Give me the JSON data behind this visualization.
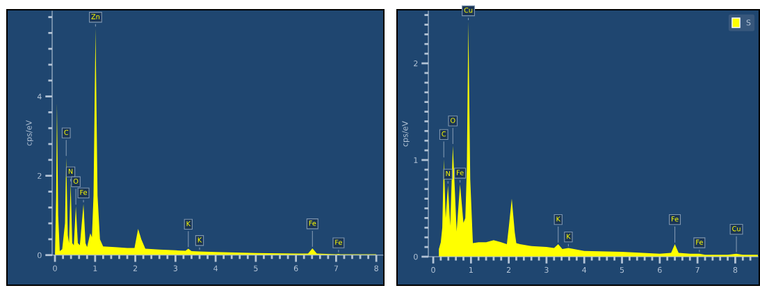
{
  "chart_data": [
    {
      "type": "area",
      "ylabel": "cps/eV",
      "xlim": [
        -0.07,
        8.17
      ],
      "ylim": [
        0,
        6.15
      ],
      "xticks": [
        0,
        1,
        2,
        3,
        4,
        5,
        6,
        7,
        8,
        {
          "value": 0.2,
          "label": null
        },
        {
          "value": 0.4,
          "label": null
        },
        {
          "value": 0.6,
          "label": null
        },
        {
          "value": 0.8,
          "label": null
        },
        {
          "value": 1.2,
          "label": null
        },
        {
          "value": 1.4,
          "label": null
        },
        {
          "value": 1.6,
          "label": null
        },
        {
          "value": 1.8,
          "label": null
        },
        {
          "value": 2.2,
          "label": null
        },
        {
          "value": 2.4,
          "label": null
        },
        {
          "value": 2.6,
          "label": null
        },
        {
          "value": 2.8,
          "label": null
        },
        {
          "value": 3.2,
          "label": null
        },
        {
          "value": 3.4,
          "label": null
        },
        {
          "value": 3.6,
          "label": null
        },
        {
          "value": 3.8,
          "label": null
        },
        {
          "value": 4.2,
          "label": null
        },
        {
          "value": 4.4,
          "label": null
        },
        {
          "value": 4.6,
          "label": null
        },
        {
          "value": 4.8,
          "label": null
        },
        {
          "value": 5.2,
          "label": null
        },
        {
          "value": 5.4,
          "label": null
        },
        {
          "value": 5.6,
          "label": null
        },
        {
          "value": 5.8,
          "label": null
        },
        {
          "value": 6.2,
          "label": null
        },
        {
          "value": 6.4,
          "label": null
        },
        {
          "value": 6.6,
          "label": null
        },
        {
          "value": 6.8,
          "label": null
        },
        {
          "value": 7.2,
          "label": null
        },
        {
          "value": 7.4,
          "label": null
        },
        {
          "value": 7.6,
          "label": null
        },
        {
          "value": 7.8,
          "label": null
        }
      ],
      "yticks": [
        0,
        2,
        4,
        {
          "value": 0.4,
          "label": null
        },
        {
          "value": 0.8,
          "label": null
        },
        {
          "value": 1.2,
          "label": null
        },
        {
          "value": 1.6,
          "label": null
        },
        {
          "value": 2.4,
          "label": null
        },
        {
          "value": 2.8,
          "label": null
        },
        {
          "value": 3.2,
          "label": null
        },
        {
          "value": 3.6,
          "label": null
        },
        {
          "value": 4.4,
          "label": null
        },
        {
          "value": 4.8,
          "label": null
        },
        {
          "value": 5.2,
          "label": null
        },
        {
          "value": 5.6,
          "label": null
        },
        {
          "value": 6.0,
          "label": null
        }
      ],
      "grid": false,
      "legend": false,
      "series": [
        {
          "color": "#ffff00",
          "x": [
            0.0,
            0.03,
            0.05,
            0.08,
            0.12,
            0.18,
            0.25,
            0.28,
            0.32,
            0.35,
            0.39,
            0.43,
            0.47,
            0.52,
            0.57,
            0.62,
            0.71,
            0.76,
            0.8,
            0.88,
            0.92,
            0.96,
            1.01,
            1.06,
            1.12,
            1.2,
            1.5,
            1.8,
            1.98,
            2.07,
            2.15,
            2.25,
            2.6,
            3.0,
            3.25,
            3.32,
            3.4,
            3.6,
            4.0,
            5.0,
            6.0,
            6.3,
            6.41,
            6.52,
            7.0,
            7.06,
            7.1,
            8.0
          ],
          "values": [
            0,
            1.5,
            3.84,
            1.0,
            0.1,
            0.15,
            0.8,
            2.46,
            0.5,
            0.3,
            1.82,
            0.3,
            0.25,
            1.23,
            0.3,
            0.25,
            1.29,
            0.3,
            0.2,
            0.55,
            0.45,
            1.5,
            5.72,
            1.5,
            0.4,
            0.22,
            0.2,
            0.18,
            0.18,
            0.66,
            0.4,
            0.16,
            0.14,
            0.12,
            0.11,
            0.16,
            0.1,
            0.09,
            0.08,
            0.05,
            0.04,
            0.04,
            0.17,
            0.04,
            0.02,
            0.03,
            0.02,
            0.02
          ]
        }
      ],
      "annotations": [
        {
          "text": "Zn",
          "x": 1.01,
          "y": 5.72
        },
        {
          "text": "C",
          "x": 0.28,
          "y": 2.46
        },
        {
          "text": "N",
          "x": 0.39,
          "y": 1.82
        },
        {
          "text": "O",
          "x": 0.52,
          "y": 1.23
        },
        {
          "text": "Fe",
          "x": 0.71,
          "y": 1.29
        },
        {
          "text": "K",
          "x": 3.32,
          "y": 0.16
        },
        {
          "text": "K",
          "x": 3.6,
          "y": 0.09
        },
        {
          "text": "Fe",
          "x": 6.41,
          "y": 0.17
        },
        {
          "text": "Fe",
          "x": 7.06,
          "y": 0.03
        }
      ]
    },
    {
      "type": "area",
      "ylabel": "cps/eV",
      "xlim": [
        -0.13,
        8.6
      ],
      "ylim": [
        0,
        2.54
      ],
      "xticks": [
        0,
        1,
        2,
        3,
        4,
        5,
        6,
        7,
        8,
        {
          "value": 0.2,
          "label": null
        },
        {
          "value": 0.4,
          "label": null
        },
        {
          "value": 0.6,
          "label": null
        },
        {
          "value": 0.8,
          "label": null
        },
        {
          "value": 1.2,
          "label": null
        },
        {
          "value": 1.4,
          "label": null
        },
        {
          "value": 1.6,
          "label": null
        },
        {
          "value": 1.8,
          "label": null
        },
        {
          "value": 2.2,
          "label": null
        },
        {
          "value": 2.4,
          "label": null
        },
        {
          "value": 2.6,
          "label": null
        },
        {
          "value": 2.8,
          "label": null
        },
        {
          "value": 3.2,
          "label": null
        },
        {
          "value": 3.4,
          "label": null
        },
        {
          "value": 3.6,
          "label": null
        },
        {
          "value": 3.8,
          "label": null
        },
        {
          "value": 4.2,
          "label": null
        },
        {
          "value": 4.4,
          "label": null
        },
        {
          "value": 4.6,
          "label": null
        },
        {
          "value": 4.8,
          "label": null
        },
        {
          "value": 5.2,
          "label": null
        },
        {
          "value": 5.4,
          "label": null
        },
        {
          "value": 5.6,
          "label": null
        },
        {
          "value": 5.8,
          "label": null
        },
        {
          "value": 6.2,
          "label": null
        },
        {
          "value": 6.4,
          "label": null
        },
        {
          "value": 6.6,
          "label": null
        },
        {
          "value": 6.8,
          "label": null
        },
        {
          "value": 7.2,
          "label": null
        },
        {
          "value": 7.4,
          "label": null
        },
        {
          "value": 7.6,
          "label": null
        },
        {
          "value": 7.8,
          "label": null
        },
        {
          "value": 8.2,
          "label": null
        },
        {
          "value": 8.4,
          "label": null
        }
      ],
      "yticks": [
        0,
        1,
        2,
        {
          "value": 0.1,
          "label": null
        },
        {
          "value": 0.2,
          "label": null
        },
        {
          "value": 0.3,
          "label": null
        },
        {
          "value": 0.4,
          "label": null
        },
        {
          "value": 0.5,
          "label": null
        },
        {
          "value": 0.6,
          "label": null
        },
        {
          "value": 0.7,
          "label": null
        },
        {
          "value": 0.8,
          "label": null
        },
        {
          "value": 0.9,
          "label": null
        },
        {
          "value": 1.1,
          "label": null
        },
        {
          "value": 1.2,
          "label": null
        },
        {
          "value": 1.3,
          "label": null
        },
        {
          "value": 1.4,
          "label": null
        },
        {
          "value": 1.5,
          "label": null
        },
        {
          "value": 1.6,
          "label": null
        },
        {
          "value": 1.7,
          "label": null
        },
        {
          "value": 1.8,
          "label": null
        },
        {
          "value": 1.9,
          "label": null
        },
        {
          "value": 2.1,
          "label": null
        },
        {
          "value": 2.2,
          "label": null
        },
        {
          "value": 2.3,
          "label": null
        },
        {
          "value": 2.4,
          "label": null
        },
        {
          "value": 2.5,
          "label": null
        }
      ],
      "grid": false,
      "legend": "top right",
      "series": [
        {
          "name": "S",
          "color": "#ffff00",
          "x": [
            0.15,
            0.2,
            0.24,
            0.28,
            0.33,
            0.39,
            0.45,
            0.52,
            0.62,
            0.71,
            0.8,
            0.85,
            0.89,
            0.93,
            0.98,
            1.05,
            1.2,
            1.4,
            1.6,
            1.8,
            1.95,
            2.0,
            2.08,
            2.16,
            2.2,
            2.3,
            2.6,
            3.0,
            3.2,
            3.31,
            3.42,
            3.58,
            4.0,
            5.0,
            6.0,
            6.3,
            6.4,
            6.5,
            6.8,
            7.05,
            7.2,
            7.8,
            8.03,
            8.2,
            8.6
          ],
          "values": [
            0.08,
            0.15,
            0.3,
            1.01,
            0.4,
            0.74,
            0.32,
            1.15,
            0.26,
            0.75,
            0.35,
            0.4,
            0.9,
            2.43,
            0.8,
            0.14,
            0.15,
            0.15,
            0.17,
            0.15,
            0.13,
            0.3,
            0.6,
            0.25,
            0.14,
            0.13,
            0.11,
            0.1,
            0.09,
            0.13,
            0.08,
            0.09,
            0.06,
            0.05,
            0.03,
            0.04,
            0.13,
            0.04,
            0.03,
            0.03,
            0.02,
            0.02,
            0.03,
            0.02,
            0.02
          ]
        }
      ],
      "annotations": [
        {
          "text": "Cu",
          "x": 0.93,
          "y": 2.43
        },
        {
          "text": "C",
          "x": 0.28,
          "y": 1.01
        },
        {
          "text": "N",
          "x": 0.39,
          "y": 0.74
        },
        {
          "text": "O",
          "x": 0.52,
          "y": 1.15
        },
        {
          "text": "Fe",
          "x": 0.71,
          "y": 0.75
        },
        {
          "text": "K",
          "x": 3.31,
          "y": 0.13
        },
        {
          "text": "K",
          "x": 3.58,
          "y": 0.09
        },
        {
          "text": "Fe",
          "x": 6.4,
          "y": 0.13
        },
        {
          "text": "Fe",
          "x": 7.05,
          "y": 0.03
        },
        {
          "text": "Cu",
          "x": 8.03,
          "y": 0.03
        }
      ]
    }
  ]
}
